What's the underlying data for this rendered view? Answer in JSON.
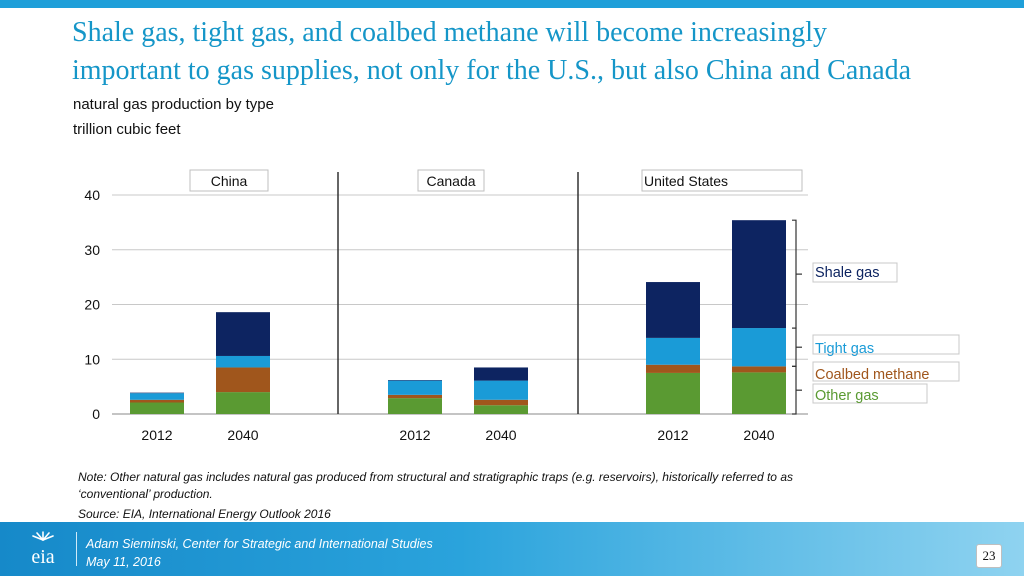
{
  "slide": {
    "title_line1": "Shale gas, tight gas, and coalbed methane will become increasingly",
    "title_line2": "important to gas supplies, not only for the U.S., but also China and Canada",
    "subtitle_line1": "natural gas production by type",
    "subtitle_line2": "trillion cubic feet",
    "note_line1": "Note: Other natural gas includes natural gas produced from structural and stratigraphic traps (e.g. reservoirs), historically referred to as",
    "note_line2": "‘conventional’ production.",
    "source": "Source:  EIA, International Energy Outlook 2016",
    "footer_name": "Adam Sieminski, Center for Strategic and International Studies",
    "footer_date": "May 11, 2016",
    "page_number": "23",
    "logo_text": "eia"
  },
  "colors": {
    "other_gas": "#5a9a32",
    "coalbed_methane": "#a0561c",
    "tight_gas": "#1a9bd7",
    "shale_gas": "#0d2461",
    "accent": "#1596c8"
  },
  "chart_data": {
    "type": "bar",
    "stacked": true,
    "ylabel": "trillion cubic feet",
    "ylim": [
      0,
      40
    ],
    "yticks": [
      "0",
      "10",
      "20",
      "30",
      "40"
    ],
    "grid": true,
    "groups": [
      {
        "name": "China",
        "bars": [
          {
            "label": "2012",
            "values": [
              2.1,
              0.5,
              1.2,
              0.1
            ]
          },
          {
            "label": "2040",
            "values": [
              4.0,
              4.5,
              2.1,
              8.0
            ]
          }
        ]
      },
      {
        "name": "Canada",
        "bars": [
          {
            "label": "2012",
            "values": [
              2.9,
              0.6,
              2.6,
              0.1
            ]
          },
          {
            "label": "2040",
            "values": [
              1.6,
              1.0,
              3.5,
              2.4
            ]
          }
        ]
      },
      {
        "name": "United States",
        "bars": [
          {
            "label": "2012",
            "values": [
              7.5,
              1.5,
              4.9,
              10.2
            ]
          },
          {
            "label": "2040",
            "values": [
              7.6,
              1.1,
              7.0,
              19.7
            ]
          }
        ]
      }
    ],
    "series": [
      {
        "name": "Other gas",
        "color": "#5a9a32"
      },
      {
        "name": "Coalbed methane",
        "color": "#a0561c"
      },
      {
        "name": "Tight gas",
        "color": "#1a9bd7"
      },
      {
        "name": "Shale gas",
        "color": "#0d2461"
      }
    ],
    "legend": [
      {
        "label": "Shale gas",
        "color": "#0d2461"
      },
      {
        "label": "Tight gas",
        "color": "#1a9bd7"
      },
      {
        "label": "Coalbed methane",
        "color": "#a0561c"
      },
      {
        "label": "Other gas",
        "color": "#5a9a32"
      }
    ],
    "legend_position": "right"
  }
}
